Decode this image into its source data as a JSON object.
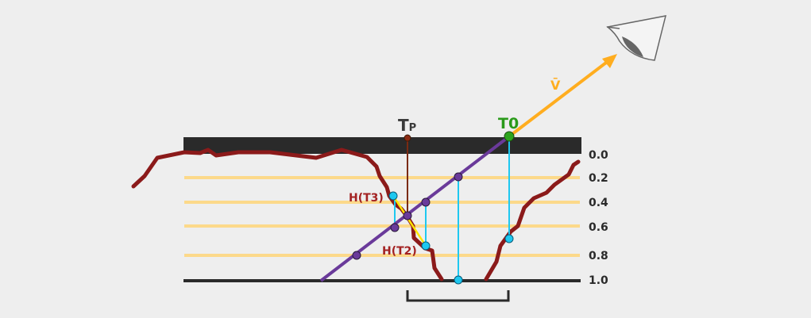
{
  "labels": {
    "tp_main": "T",
    "tp_sub": "P",
    "t0": "T0",
    "view_vector": "V̄",
    "h_t3": "H(T3)",
    "h_t2": "H(T2)"
  },
  "depth_scale": [
    "0.0",
    "0.2",
    "0.4",
    "0.6",
    "0.8",
    "1.0"
  ],
  "colors": {
    "background": "#eeeeee",
    "surface": "#2a2a2a",
    "layer_lines": "#fcd98a",
    "height_profile": "#8b1a1a",
    "ray": "#6a3a9a",
    "view_vector": "#ffad1f",
    "t0_text": "#2a9a1a",
    "h_label_text": "#a32222",
    "sample_points": "#6a3a9a",
    "projection_points": "#1ec8f0"
  },
  "icons": {
    "eye": "eye-icon"
  }
}
